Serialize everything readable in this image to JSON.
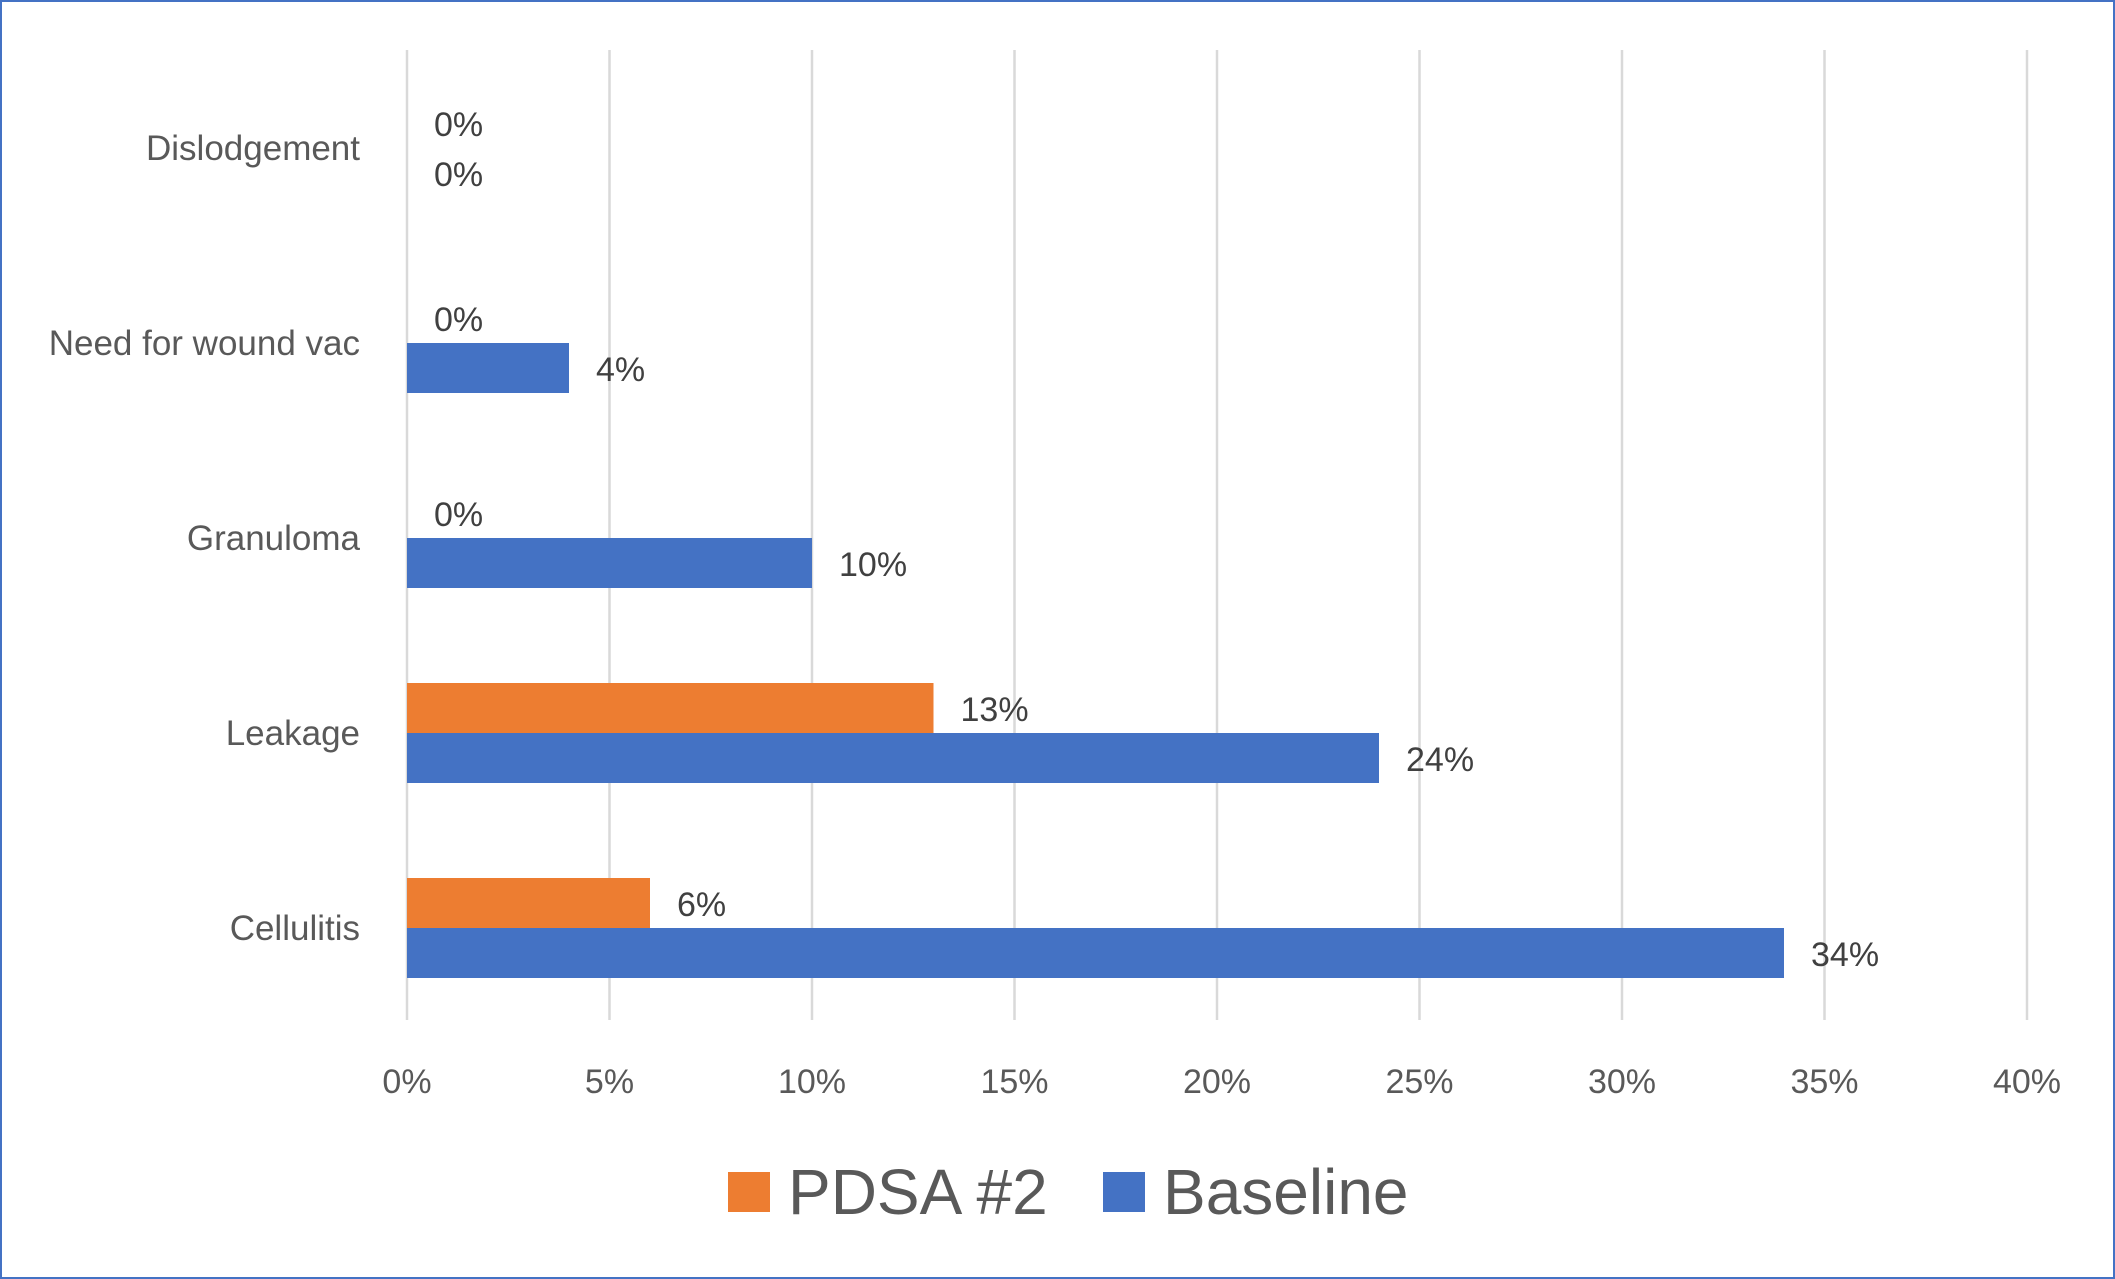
{
  "chart_data": {
    "type": "bar",
    "orientation": "horizontal",
    "categories": [
      "Dislodgement",
      "Need for wound vac",
      "Granuloma",
      "Leakage",
      "Cellulitis"
    ],
    "series": [
      {
        "name": "PDSA #2",
        "color": "#ed7d31",
        "values": [
          0,
          0,
          0,
          13,
          6
        ],
        "labels": [
          "0%",
          "0%",
          "0%",
          "13%",
          "6%"
        ]
      },
      {
        "name": "Baseline",
        "color": "#4472c4",
        "values": [
          0,
          4,
          10,
          24,
          34
        ],
        "labels": [
          "0%",
          "4%",
          "10%",
          "24%",
          "34%"
        ]
      }
    ],
    "x_ticks": [
      "0%",
      "5%",
      "10%",
      "15%",
      "20%",
      "25%",
      "30%",
      "35%",
      "40%"
    ],
    "xlim": [
      0,
      40
    ],
    "grid": "vertical",
    "legend": {
      "position": "bottom",
      "entries": [
        "PDSA #2",
        "Baseline"
      ]
    }
  }
}
